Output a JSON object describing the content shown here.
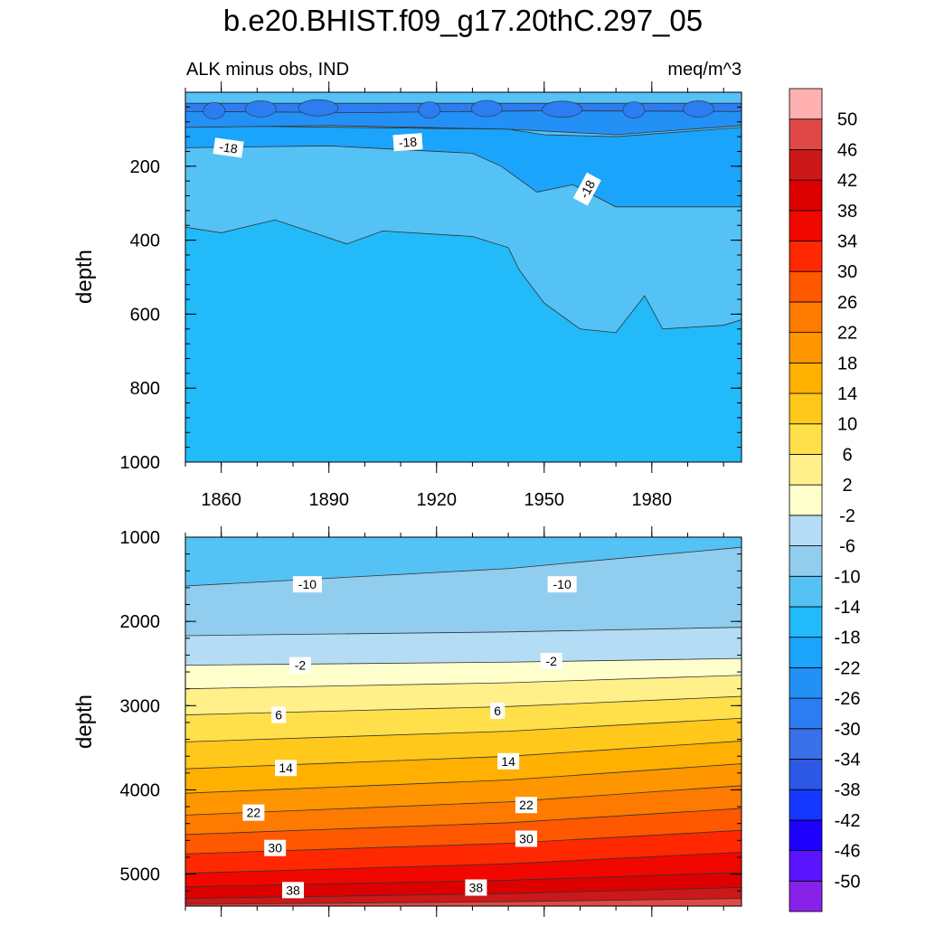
{
  "chart_data": {
    "type": "heatmap",
    "title": "b.e20.BHIST.f09_g17.20thC.297_05",
    "subtitle_left": "ALK minus obs, IND",
    "subtitle_right": "meq/m^3",
    "x_range": [
      1850,
      2005
    ],
    "x_ticks": [
      1860,
      1890,
      1920,
      1950,
      1980
    ],
    "panels": [
      {
        "name": "upper",
        "ylabel": "depth",
        "ylim": [
          0,
          1000
        ],
        "y_ticks": [
          200,
          400,
          600,
          800,
          1000
        ],
        "background_level": "-14",
        "bands": [
          {
            "level": "-18",
            "top": [
              [
                1850,
                365
              ],
              [
                1860,
                380
              ],
              [
                1875,
                345
              ],
              [
                1895,
                410
              ],
              [
                1905,
                375
              ],
              [
                1930,
                390
              ],
              [
                1940,
                420
              ],
              [
                1943,
                480
              ],
              [
                1950,
                570
              ],
              [
                1960,
                640
              ],
              [
                1970,
                650
              ],
              [
                1978,
                550
              ],
              [
                1983,
                640
              ],
              [
                2000,
                630
              ],
              [
                2005,
                615
              ]
            ],
            "bottom": null
          },
          {
            "level": "-22",
            "top": [
              [
                1850,
                90
              ],
              [
                1940,
                100
              ],
              [
                1950,
                115
              ],
              [
                1970,
                120
              ],
              [
                2005,
                95
              ]
            ],
            "bottom": [
              [
                1850,
                150
              ],
              [
                1890,
                145
              ],
              [
                1930,
                165
              ],
              [
                1938,
                200
              ],
              [
                1948,
                270
              ],
              [
                1958,
                250
              ],
              [
                1970,
                310
              ],
              [
                1990,
                310
              ],
              [
                2005,
                310
              ]
            ]
          },
          {
            "level": "-26",
            "top": [
              [
                1850,
                30
              ],
              [
                2005,
                30
              ]
            ],
            "bottom": [
              [
                1850,
                95
              ],
              [
                1890,
                90
              ],
              [
                1940,
                100
              ],
              [
                1970,
                115
              ],
              [
                2005,
                90
              ]
            ]
          },
          {
            "level": "-30",
            "top": [
              [
                1850,
                30
              ],
              [
                2005,
                30
              ]
            ],
            "bottom": [
              [
                1850,
                52
              ],
              [
                1900,
                55
              ],
              [
                1950,
                50
              ],
              [
                2005,
                52
              ]
            ]
          }
        ],
        "contour_labels": [
          {
            "text": "-18",
            "x": 1862,
            "y": 150,
            "rotate": 8
          },
          {
            "text": "-18",
            "x": 1912,
            "y": 135,
            "rotate": -4
          },
          {
            "text": "-18",
            "x": 1962,
            "y": 262,
            "rotate": -62
          }
        ]
      },
      {
        "name": "lower",
        "ylabel": "depth",
        "ylim": [
          1000,
          5380
        ],
        "y_ticks": [
          1000,
          2000,
          3000,
          4000,
          5000
        ],
        "background_level": "-14",
        "bands": [
          {
            "level": "-10",
            "start": [
              1850,
              1580
            ],
            "end": [
              2005,
              1120
            ]
          },
          {
            "level": "-6",
            "start": [
              1850,
              2170
            ],
            "end": [
              2005,
              2070
            ]
          },
          {
            "level": "-2",
            "start": [
              1850,
              2520
            ],
            "end": [
              2005,
              2440
            ]
          },
          {
            "level": "2",
            "start": [
              1850,
              2800
            ],
            "end": [
              2005,
              2640
            ]
          },
          {
            "level": "6",
            "start": [
              1850,
              3110
            ],
            "end": [
              2005,
              2890
            ]
          },
          {
            "level": "10",
            "start": [
              1850,
              3430
            ],
            "end": [
              2005,
              3150
            ]
          },
          {
            "level": "14",
            "start": [
              1850,
              3750
            ],
            "end": [
              2005,
              3420
            ]
          },
          {
            "level": "18",
            "start": [
              1850,
              4040
            ],
            "end": [
              2005,
              3690
            ]
          },
          {
            "level": "22",
            "start": [
              1850,
              4300
            ],
            "end": [
              2005,
              3950
            ]
          },
          {
            "level": "26",
            "start": [
              1850,
              4530
            ],
            "end": [
              2005,
              4220
            ]
          },
          {
            "level": "30",
            "start": [
              1850,
              4760
            ],
            "end": [
              2005,
              4480
            ]
          },
          {
            "level": "34",
            "start": [
              1850,
              4990
            ],
            "end": [
              2005,
              4740
            ]
          },
          {
            "level": "38",
            "start": [
              1850,
              5150
            ],
            "end": [
              2005,
              4980
            ]
          },
          {
            "level": "42",
            "start": [
              1850,
              5290
            ],
            "end": [
              2005,
              5160
            ]
          },
          {
            "level": "46",
            "start": [
              1850,
              5360
            ],
            "end": [
              2005,
              5290
            ]
          }
        ],
        "contour_labels": [
          {
            "text": "-10",
            "x": 1884,
            "y": 1560
          },
          {
            "text": "-10",
            "x": 1955,
            "y": 1560
          },
          {
            "text": "-2",
            "x": 1882,
            "y": 2520
          },
          {
            "text": "-2",
            "x": 1952,
            "y": 2470
          },
          {
            "text": "6",
            "x": 1876,
            "y": 3110
          },
          {
            "text": "6",
            "x": 1937,
            "y": 3060
          },
          {
            "text": "14",
            "x": 1878,
            "y": 3740
          },
          {
            "text": "14",
            "x": 1940,
            "y": 3660
          },
          {
            "text": "22",
            "x": 1869,
            "y": 4270
          },
          {
            "text": "22",
            "x": 1945,
            "y": 4180
          },
          {
            "text": "30",
            "x": 1875,
            "y": 4690
          },
          {
            "text": "30",
            "x": 1945,
            "y": 4580
          },
          {
            "text": "38",
            "x": 1880,
            "y": 5190
          },
          {
            "text": "38",
            "x": 1931,
            "y": 5160
          }
        ]
      }
    ],
    "colorbar": {
      "labels": [
        "-50",
        "-46",
        "-42",
        "-38",
        "-34",
        "-30",
        "-26",
        "-22",
        "-18",
        "-14",
        "-10",
        "-6",
        "-2",
        "2",
        "6",
        "10",
        "14",
        "18",
        "22",
        "26",
        "30",
        "34",
        "38",
        "42",
        "46",
        "50"
      ],
      "colors": [
        "#8822e8",
        "#5a14ff",
        "#1e00ff",
        "#1438ff",
        "#2c58e4",
        "#3a70e8",
        "#2c7cf2",
        "#2390f5",
        "#1aa4fb",
        "#22baf8",
        "#55c2f5",
        "#90cdee",
        "#b4dcf4",
        "#ffffcc",
        "#fff08a",
        "#ffe04a",
        "#ffc81a",
        "#ffb000",
        "#ff9600",
        "#ff7a00",
        "#ff5800",
        "#ff2800",
        "#f20600",
        "#dc0000",
        "#cc1818",
        "#e04848",
        "#ffb0b0"
      ]
    }
  }
}
